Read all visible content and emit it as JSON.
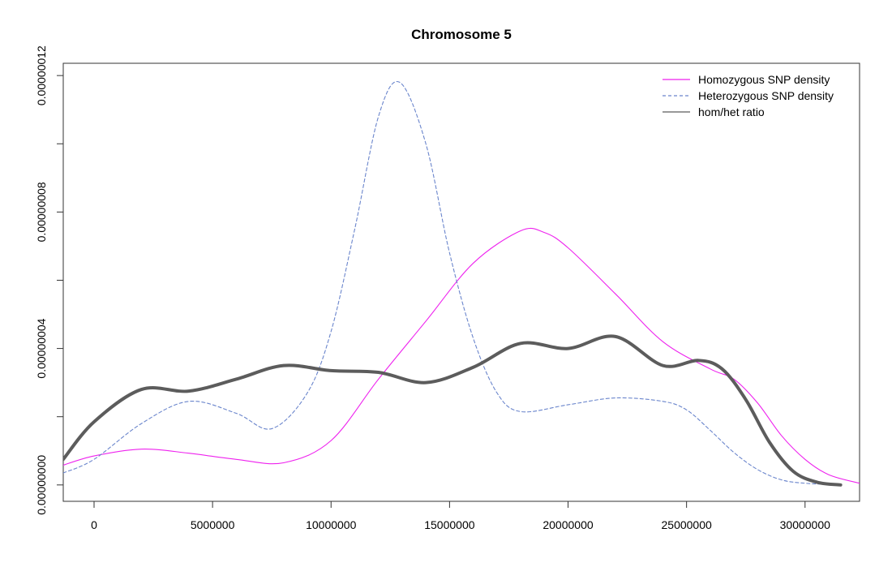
{
  "chart_data": {
    "type": "line",
    "title": "Chromosome 5",
    "xlabel": "",
    "ylabel": "",
    "xlim": [
      -1300000,
      32300000
    ],
    "ylim": [
      -4.8e-09,
      1.236e-07
    ],
    "x_ticks": [
      0,
      5000000,
      10000000,
      15000000,
      20000000,
      25000000,
      30000000
    ],
    "x_tick_labels": [
      "0",
      "5000000",
      "10000000",
      "15000000",
      "20000000",
      "25000000",
      "30000000"
    ],
    "y_ticks": [
      0,
      2e-08,
      4e-08,
      6e-08,
      8e-08,
      1e-07,
      1.2e-07
    ],
    "y_tick_labels": [
      "0.00000000",
      "0.00000004",
      "0.00000008",
      "0.00000012"
    ],
    "y_tick_label_values": [
      0,
      4e-08,
      8e-08,
      1.2e-07
    ],
    "grid": false,
    "legend_position": "top-right",
    "series": [
      {
        "name": "Homozygous SNP density",
        "color": "#ee22ee",
        "style": "solid",
        "x": [
          -1300000,
          0,
          2000000,
          4000000,
          6000000,
          8000000,
          10000000,
          12000000,
          14000000,
          16000000,
          18000000,
          19000000,
          20000000,
          22000000,
          24000000,
          26000000,
          27000000,
          28000000,
          29000000,
          30000000,
          31000000,
          32300000
        ],
        "y": [
          5.8e-09,
          8.5e-09,
          1.05e-08,
          9.3e-09,
          7.5e-09,
          6.5e-09,
          1.3e-08,
          3.1e-08,
          4.8e-08,
          6.5e-08,
          7.45e-08,
          7.4e-08,
          6.95e-08,
          5.6e-08,
          4.2e-08,
          3.4e-08,
          3.1e-08,
          2.4e-08,
          1.45e-08,
          7.5e-09,
          3e-09,
          5e-10
        ]
      },
      {
        "name": "Heterozygous SNP density",
        "color": "#6a85cc",
        "style": "dashed",
        "x": [
          -1300000,
          0,
          2000000,
          4000000,
          6000000,
          7500000,
          9000000,
          10000000,
          11000000,
          12000000,
          12900000,
          14000000,
          15000000,
          16000000,
          17000000,
          18000000,
          20000000,
          22000000,
          24000000,
          25000000,
          26000000,
          27000000,
          28000000,
          29000000,
          30000000,
          31500000
        ],
        "y": [
          3.5e-09,
          7.5e-09,
          1.8e-08,
          2.45e-08,
          2.1e-08,
          1.65e-08,
          2.7e-08,
          4.5e-08,
          7.5e-08,
          1.08e-07,
          1.18e-07,
          1e-07,
          6.8e-08,
          4.3e-08,
          2.7e-08,
          2.15e-08,
          2.35e-08,
          2.55e-08,
          2.45e-08,
          2.2e-08,
          1.6e-08,
          9.5e-09,
          4.5e-09,
          1.5e-09,
          5e-10,
          0
        ]
      },
      {
        "name": "hom/het ratio",
        "color": "#5c5c5c",
        "style": "solid-thick",
        "x": [
          -1300000,
          0,
          2000000,
          4000000,
          6000000,
          8000000,
          10000000,
          12000000,
          14000000,
          16000000,
          18000000,
          20000000,
          22000000,
          24000000,
          25500000,
          26500000,
          27500000,
          28500000,
          29500000,
          30500000,
          31500000
        ],
        "y": [
          7.5e-09,
          1.85e-08,
          2.8e-08,
          2.75e-08,
          3.1e-08,
          3.5e-08,
          3.35e-08,
          3.3e-08,
          3e-08,
          3.45e-08,
          4.15e-08,
          4e-08,
          4.35e-08,
          3.5e-08,
          3.65e-08,
          3.4e-08,
          2.5e-08,
          1.25e-08,
          4e-09,
          8e-10,
          0
        ]
      }
    ]
  }
}
